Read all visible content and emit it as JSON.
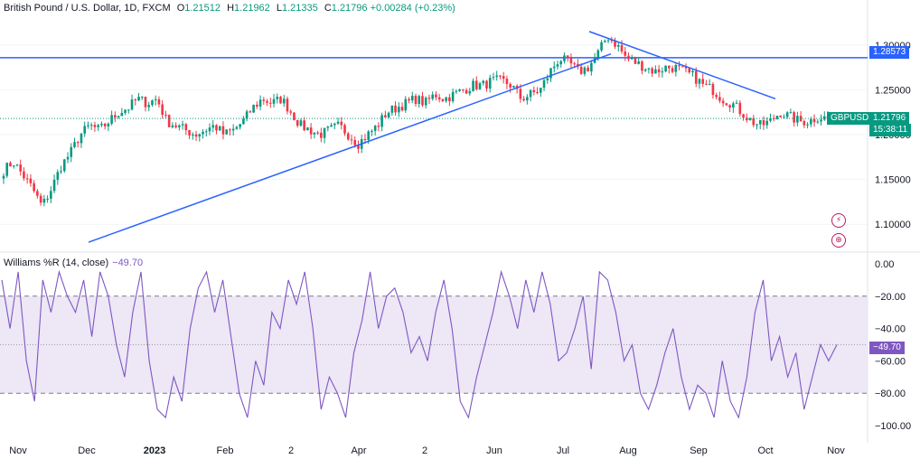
{
  "header": {
    "symbol": "British Pound / U.S. Dollar, 1D, FXCM",
    "open_label": "O",
    "open": "1.21512",
    "high_label": "H",
    "high": "1.21962",
    "low_label": "L",
    "low": "1.21335",
    "close_label": "C",
    "close": "1.21796",
    "change": "+0.00284 (+0.23%)"
  },
  "indicator": {
    "name": "Williams %R (14, close)",
    "value": "−49.70"
  },
  "badges": {
    "level": "1.28573",
    "ticker": "GBPUSD",
    "price": "1.21796",
    "countdown": "15:38:11",
    "wr": "−49.70"
  },
  "colors": {
    "up": "#089981",
    "down": "#f23645",
    "line": "#2962ff",
    "wr": "#7e57c2",
    "band": "#ede7f6"
  },
  "chart_data": [
    {
      "type": "candlestick",
      "title": "British Pound / U.S. Dollar, 1D, FXCM",
      "ylim": [
        1.07,
        1.33
      ],
      "y_ticks": [
        "1.30000",
        "1.25000",
        "1.20000",
        "1.15000",
        "1.10000"
      ],
      "x_ticks": [
        "Nov",
        "Dec",
        "2023",
        "Feb",
        "2",
        "Apr",
        "2",
        "Jun",
        "Jul",
        "Aug",
        "Sep",
        "Oct",
        "Nov"
      ],
      "horizontal_line": 1.28573,
      "trendlines": [
        {
          "from": [
            "Nov 2022",
            1.08
          ],
          "to": [
            "Jul 2023",
            1.29
          ]
        },
        {
          "from": [
            "Jul 2023",
            1.315
          ],
          "to": [
            "Sep 2023",
            1.24
          ]
        }
      ],
      "close_path": [
        1.16,
        1.17,
        1.155,
        1.14,
        1.12,
        1.14,
        1.165,
        1.18,
        1.2,
        1.21,
        1.205,
        1.215,
        1.225,
        1.23,
        1.24,
        1.235,
        1.24,
        1.215,
        1.21,
        1.205,
        1.2,
        1.205,
        1.21,
        1.2,
        1.205,
        1.215,
        1.23,
        1.24,
        1.235,
        1.24,
        1.225,
        1.21,
        1.205,
        1.2,
        1.205,
        1.21,
        1.2,
        1.19,
        1.2,
        1.21,
        1.225,
        1.23,
        1.235,
        1.24,
        1.235,
        1.245,
        1.24,
        1.245,
        1.25,
        1.255,
        1.255,
        1.26,
        1.26,
        1.255,
        1.24,
        1.245,
        1.25,
        1.27,
        1.285,
        1.28,
        1.27,
        1.275,
        1.29,
        1.31,
        1.3,
        1.285,
        1.28,
        1.275,
        1.27,
        1.275,
        1.275,
        1.27,
        1.265,
        1.255,
        1.25,
        1.24,
        1.235,
        1.225,
        1.215,
        1.21,
        1.215,
        1.225,
        1.22,
        1.215,
        1.215,
        1.22,
        1.2179
      ]
    },
    {
      "type": "line",
      "title": "Williams %R (14, close)",
      "ylim": [
        -105,
        5
      ],
      "y_ticks": [
        "0.00",
        "−20.00",
        "−40.00",
        "−60.00",
        "−80.00",
        "−100.00"
      ],
      "bands": [
        -20,
        -80
      ],
      "midline": -50,
      "values": [
        -10,
        -40,
        -5,
        -60,
        -85,
        -10,
        -30,
        -5,
        -20,
        -30,
        -10,
        -45,
        -5,
        -20,
        -50,
        -70,
        -30,
        -5,
        -60,
        -90,
        -95,
        -70,
        -85,
        -40,
        -15,
        -5,
        -30,
        -10,
        -45,
        -80,
        -95,
        -60,
        -75,
        -30,
        -40,
        -10,
        -25,
        -5,
        -40,
        -90,
        -70,
        -80,
        -95,
        -55,
        -35,
        -5,
        -40,
        -20,
        -15,
        -30,
        -55,
        -45,
        -60,
        -30,
        -10,
        -40,
        -85,
        -95,
        -70,
        -50,
        -30,
        -5,
        -20,
        -40,
        -10,
        -30,
        -5,
        -25,
        -60,
        -55,
        -40,
        -20,
        -65,
        -5,
        -10,
        -30,
        -60,
        -50,
        -80,
        -90,
        -75,
        -55,
        -40,
        -70,
        -90,
        -75,
        -80,
        -95,
        -60,
        -85,
        -95,
        -70,
        -30,
        -10,
        -60,
        -45,
        -70,
        -55,
        -90,
        -70,
        -50,
        -60,
        -50
      ]
    }
  ]
}
